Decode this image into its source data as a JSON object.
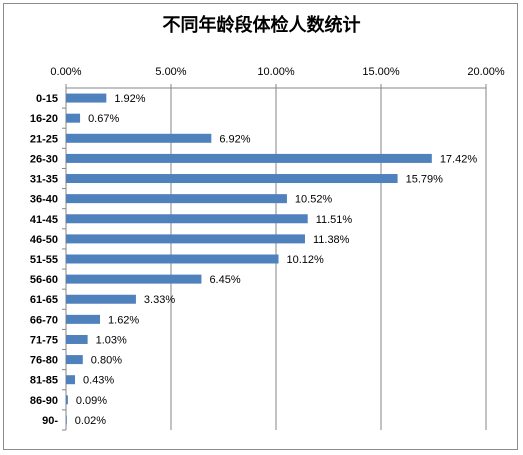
{
  "chart_data": {
    "type": "bar",
    "orientation": "horizontal",
    "title": "不同年龄段体检人数统计",
    "categories": [
      "0-15",
      "16-20",
      "21-25",
      "26-30",
      "31-35",
      "36-40",
      "41-45",
      "46-50",
      "51-55",
      "56-60",
      "61-65",
      "66-70",
      "71-75",
      "76-80",
      "81-85",
      "86-90",
      "90-"
    ],
    "values": [
      1.92,
      0.67,
      6.92,
      17.42,
      15.79,
      10.52,
      11.51,
      11.38,
      10.12,
      6.45,
      3.33,
      1.62,
      1.03,
      0.8,
      0.43,
      0.09,
      0.02
    ],
    "data_labels": [
      "1.92%",
      "0.67%",
      "6.92%",
      "17.42%",
      "15.79%",
      "10.52%",
      "11.51%",
      "11.38%",
      "10.12%",
      "6.45%",
      "3.33%",
      "1.62%",
      "1.03%",
      "0.80%",
      "0.43%",
      "0.09%",
      "0.02%"
    ],
    "x_ticks": [
      "0.00%",
      "5.00%",
      "10.00%",
      "15.00%",
      "20.00%"
    ],
    "xlim": [
      0,
      20
    ],
    "x_axis_position": "top",
    "grid": true,
    "bar_color": "#4f81bd",
    "grid_color": "#868686"
  }
}
